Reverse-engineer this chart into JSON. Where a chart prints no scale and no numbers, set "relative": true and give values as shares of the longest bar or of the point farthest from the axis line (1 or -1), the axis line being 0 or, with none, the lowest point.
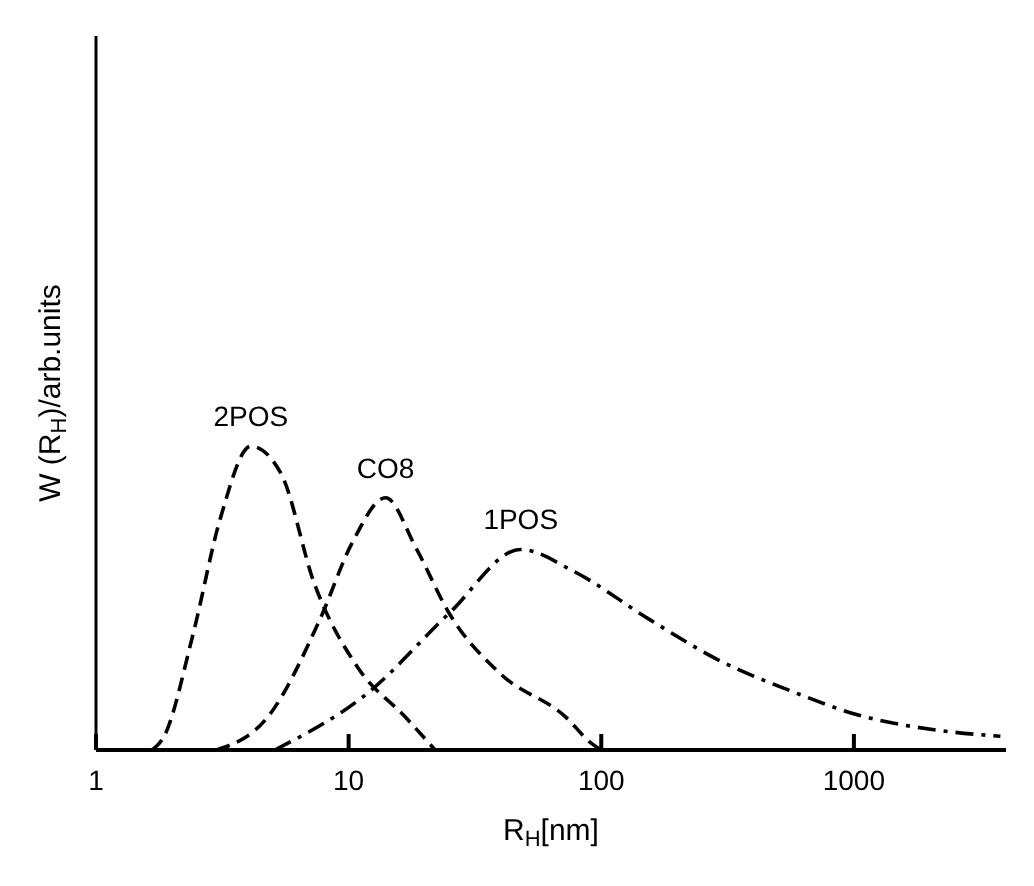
{
  "chart_data": {
    "type": "line",
    "relative": true,
    "log": "x",
    "xlabel": "R$_{H}$[nm]",
    "ylabel": "W (R$_{H}$)/arb.units",
    "xlim": [
      1,
      4000
    ],
    "xticks": [
      1,
      10,
      100,
      1000
    ],
    "marker": "none",
    "series": [
      {
        "name": "2POS",
        "color": "#000000",
        "line_style": "dashed",
        "x": [
          1.67,
          1.86,
          2.42,
          3.1,
          4.1,
          5.4,
          7.3,
          10.9,
          16.7,
          22
        ],
        "values": [
          0,
          0.045,
          0.38,
          0.76,
          1,
          0.91,
          0.55,
          0.27,
          0.11,
          0
        ]
      },
      {
        "name": "CO8",
        "color": "#000000",
        "line_style": "dashed",
        "x": [
          3.0,
          4.8,
          7.7,
          10.3,
          14,
          18.6,
          25,
          40,
          72,
          92,
          100
        ],
        "values": [
          0,
          0.11,
          0.43,
          0.68,
          0.83,
          0.66,
          0.45,
          0.25,
          0.11,
          0.02,
          0
        ]
      },
      {
        "name": "1POS",
        "color": "#000000",
        "line_style": "dashdot",
        "x": [
          5.1,
          12,
          25,
          48,
          77,
          155,
          285,
          580,
          1040,
          2200,
          3800
        ],
        "values": [
          0,
          0.19,
          0.45,
          0.66,
          0.59,
          0.43,
          0.3,
          0.19,
          0.115,
          0.064,
          0.045
        ]
      }
    ]
  }
}
